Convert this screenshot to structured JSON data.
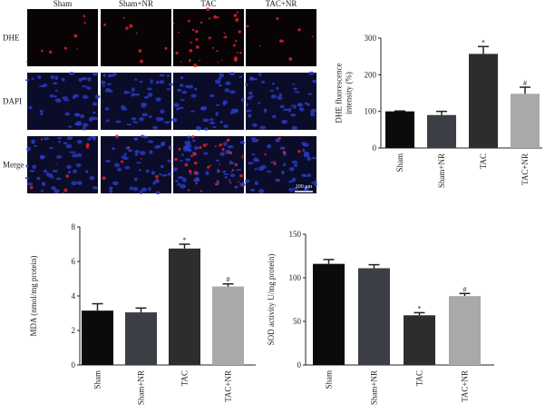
{
  "image_panel": {
    "columns": [
      "Sham",
      "Sham+NR",
      "TAC",
      "TAC+NR"
    ],
    "rows": [
      "DHE",
      "DAPI",
      "Merge"
    ],
    "scale_bar": "100 μm"
  },
  "chart_data": [
    {
      "type": "bar",
      "ylabel": [
        "DHE fluorescence",
        "intensity (%)"
      ],
      "categories": [
        "Sham",
        "Sham+NR",
        "TAC",
        "TAC+NR"
      ],
      "values": [
        100,
        90,
        257,
        148
      ],
      "errors": [
        1,
        10,
        20,
        18
      ],
      "value_annotations": [
        null,
        null,
        "*",
        "#"
      ],
      "colors": [
        "#0b0b0b",
        "#3b3e44",
        "#2d2d2f",
        "#a9a9a9"
      ],
      "ylim": [
        0,
        300
      ],
      "yticks": [
        0,
        100,
        200,
        300
      ]
    },
    {
      "type": "bar",
      "ylabel": [
        "MDA (nmol/mg protein)"
      ],
      "categories": [
        "Sham",
        "Sham+NR",
        "TAC",
        "TAC+NR"
      ],
      "values": [
        3.15,
        3.05,
        6.75,
        4.55
      ],
      "errors": [
        0.4,
        0.25,
        0.25,
        0.15
      ],
      "value_annotations": [
        null,
        null,
        "*",
        "#"
      ],
      "colors": [
        "#0b0b0b",
        "#3b3e44",
        "#2d2d2f",
        "#a9a9a9"
      ],
      "ylim": [
        0,
        8
      ],
      "yticks": [
        0,
        2,
        4,
        6,
        8
      ]
    },
    {
      "type": "bar",
      "ylabel": [
        "SOD activity U/mg protein)"
      ],
      "categories": [
        "Sham",
        "Sham+NR",
        "TAC",
        "TAC+NR"
      ],
      "values": [
        116,
        111,
        57,
        79
      ],
      "errors": [
        5,
        4,
        3,
        3
      ],
      "value_annotations": [
        null,
        null,
        "*",
        "#"
      ],
      "colors": [
        "#0b0b0b",
        "#3b3e44",
        "#2d2d2f",
        "#a9a9a9"
      ],
      "ylim": [
        0,
        150
      ],
      "yticks": [
        0,
        50,
        100,
        150
      ]
    }
  ]
}
